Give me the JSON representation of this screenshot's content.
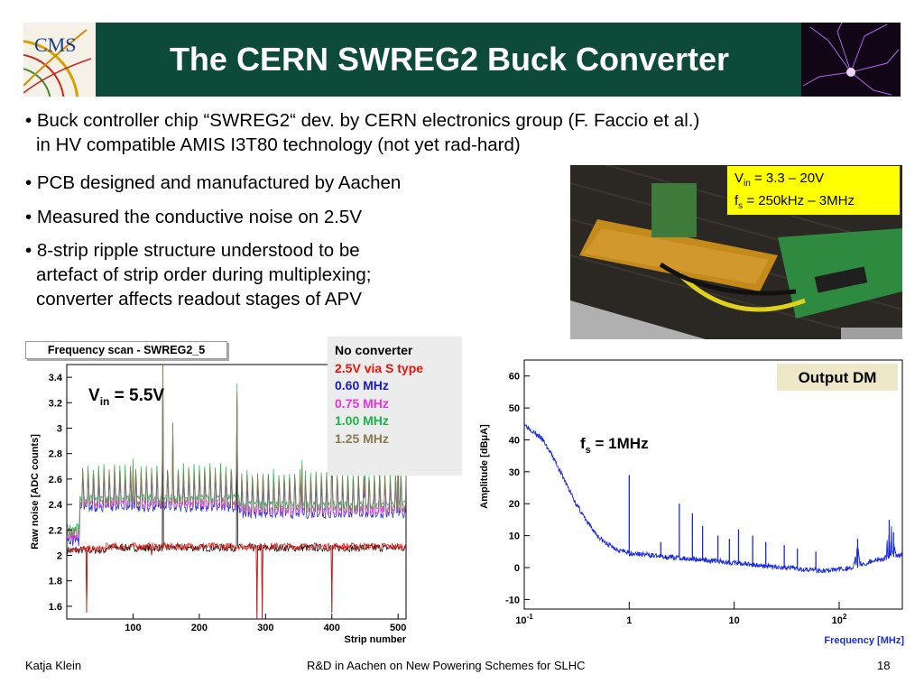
{
  "header": {
    "title": "The CERN SWREG2 Buck Converter",
    "logo_text": "CMS"
  },
  "bullets": [
    {
      "line1": "• Buck controller chip “SWREG2“ dev. by CERN electronics group (F. Faccio et al.)",
      "line2": "in HV compatible AMIS I3T80 technology (not yet rad-hard)"
    },
    {
      "line1": "• PCB designed and manufactured by Aachen"
    },
    {
      "line1": "• Measured the conductive noise on 2.5V"
    },
    {
      "line1": "• 8-strip ripple structure understood to be",
      "line2": "artefact of strip order during multiplexing;",
      "line3": "converter affects readout stages of APV"
    }
  ],
  "photo_label": {
    "vin_main": "V",
    "vin_sub": "in",
    "vin_rest": " = 3.3 – 20V",
    "fs_main": "f",
    "fs_sub": "s",
    "fs_rest": " = 250kHz – 3MHz"
  },
  "legend": [
    {
      "label": "No converter",
      "color": "#000000"
    },
    {
      "label": "2.5V via S type",
      "color": "#e8140c"
    },
    {
      "label": "0.60 MHz",
      "color": "#1a1acc"
    },
    {
      "label": "0.75 MHz",
      "color": "#ee33dd"
    },
    {
      "label": "1.00 MHz",
      "color": "#1db34a"
    },
    {
      "label": "1.25 MHz",
      "color": "#8a7a52"
    }
  ],
  "footer": {
    "author": "Katja Klein",
    "talk": "R&D in Aachen on New Powering Schemes for SLHC",
    "page": "18"
  },
  "chart_data": [
    {
      "type": "line",
      "title": "Frequency scan - SWREG2_5",
      "xlabel": "Strip number",
      "ylabel": "Raw noise [ADC counts]",
      "annotation": {
        "main": "V",
        "sub": "in",
        "rest": " = 5.5V"
      },
      "xlim": [
        0,
        512
      ],
      "ylim": [
        1.5,
        3.5
      ],
      "x_ticks": [
        100,
        200,
        300,
        400,
        500
      ],
      "y_ticks": [
        1.6,
        1.8,
        2,
        2.2,
        2.4,
        2.6,
        2.8,
        3,
        3.2,
        3.4
      ],
      "series": [
        {
          "name": "No converter",
          "color": "#000000",
          "base": 2.06
        },
        {
          "name": "2.5V via S type",
          "color": "#e8140c",
          "base": 2.07
        },
        {
          "name": "0.60 MHz",
          "color": "#1a1acc",
          "base": 2.42
        },
        {
          "name": "0.75 MHz",
          "color": "#ee33dd",
          "base": 2.45
        },
        {
          "name": "1.00 MHz",
          "color": "#1db34a",
          "base": 2.5
        },
        {
          "name": "1.25 MHz",
          "color": "#8a7a52",
          "base": 2.47
        }
      ]
    },
    {
      "type": "line",
      "box_label": "Output DM",
      "xlabel": "Frequency [MHz]",
      "ylabel": "Amplitude [dBμA]",
      "annotation": {
        "main": "f",
        "sub": "s",
        "rest": " = 1MHz"
      },
      "xscale": "log",
      "xlim": [
        0.1,
        400
      ],
      "ylim": [
        -13,
        65
      ],
      "x_ticks": [
        {
          "v": 0.1,
          "base": "10",
          "sup": "-1"
        },
        {
          "v": 1,
          "base": "1",
          "sup": ""
        },
        {
          "v": 10,
          "base": "10",
          "sup": ""
        },
        {
          "v": 100,
          "base": "10",
          "sup": "2"
        }
      ],
      "y_ticks": [
        -10,
        0,
        10,
        20,
        30,
        40,
        50,
        60
      ],
      "series": [
        {
          "name": "Output DM",
          "color": "#1a2bdd",
          "x": [
            0.1,
            0.15,
            0.2,
            0.3,
            0.4,
            0.5,
            0.6,
            0.7,
            0.8,
            0.9,
            1,
            1.5,
            2,
            3,
            5,
            10,
            20,
            30,
            50,
            70,
            100,
            150,
            200,
            300,
            400
          ],
          "y": [
            45,
            40,
            33,
            21,
            14,
            10,
            7.5,
            6.5,
            5.5,
            5,
            4.5,
            4,
            3.5,
            3,
            2.5,
            1.5,
            0.5,
            0,
            -0.5,
            -1,
            -0.5,
            0,
            2,
            3,
            4
          ]
        }
      ],
      "peaks": [
        {
          "x": 1,
          "y": 29
        },
        {
          "x": 2,
          "y": 8
        },
        {
          "x": 3,
          "y": 20
        },
        {
          "x": 4,
          "y": 17
        },
        {
          "x": 5,
          "y": 13
        },
        {
          "x": 7,
          "y": 10
        },
        {
          "x": 9,
          "y": 9
        },
        {
          "x": 11,
          "y": 12
        },
        {
          "x": 15,
          "y": 10
        },
        {
          "x": 20,
          "y": 8
        },
        {
          "x": 30,
          "y": 7
        },
        {
          "x": 40,
          "y": 6
        },
        {
          "x": 60,
          "y": 5
        },
        {
          "x": 150,
          "y": 9
        },
        {
          "x": 300,
          "y": 15
        },
        {
          "x": 330,
          "y": 11
        }
      ]
    }
  ]
}
